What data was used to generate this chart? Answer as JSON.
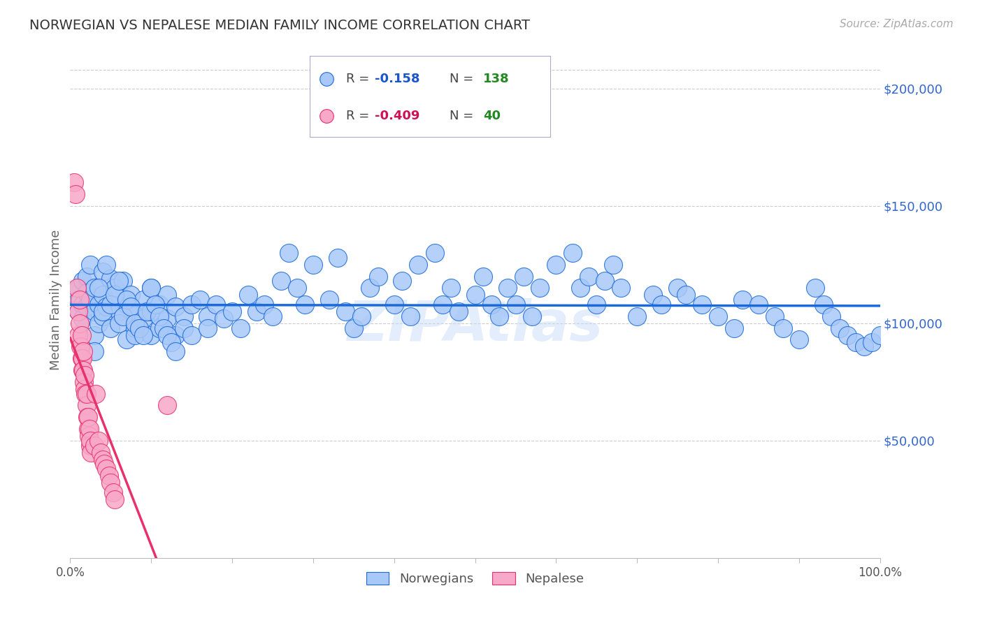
{
  "title": "NORWEGIAN VS NEPALESE MEDIAN FAMILY INCOME CORRELATION CHART",
  "source": "Source: ZipAtlas.com",
  "ylabel": "Median Family Income",
  "watermark": "ZIPAtlas",
  "norwegian_R": "-0.158",
  "norwegian_N": "138",
  "nepalese_R": "-0.409",
  "nepalese_N": "40",
  "norwegian_color": "#a8c8f8",
  "nepalese_color": "#f8a8c8",
  "norwegian_line_color": "#1a6adb",
  "nepalese_line_color": "#e8306a",
  "nepalese_line_dashed_color": "#d0a0b8",
  "grid_color": "#cccccc",
  "title_color": "#333333",
  "ytick_color": "#3366cc",
  "xtick_color": "#555555",
  "legend_border_color": "#aaaacc",
  "legend_r_color_norwegian": "#1a55cc",
  "legend_r_color_nepalese": "#cc1155",
  "legend_n_color": "#228822",
  "background_color": "#ffffff",
  "ylim": [
    0,
    220000
  ],
  "xlim": [
    0.0,
    1.0
  ],
  "yticks": [
    50000,
    100000,
    150000,
    200000
  ],
  "ytick_labels": [
    "$50,000",
    "$100,000",
    "$150,000",
    "$200,000"
  ],
  "xticks": [
    0.0,
    0.1,
    0.2,
    0.3,
    0.4,
    0.5,
    0.6,
    0.7,
    0.8,
    0.9,
    1.0
  ],
  "norwegian_x": [
    0.01,
    0.01,
    0.01,
    0.015,
    0.015,
    0.015,
    0.02,
    0.02,
    0.02,
    0.025,
    0.025,
    0.03,
    0.03,
    0.03,
    0.035,
    0.035,
    0.04,
    0.04,
    0.04,
    0.045,
    0.05,
    0.05,
    0.055,
    0.06,
    0.06,
    0.065,
    0.07,
    0.07,
    0.075,
    0.08,
    0.08,
    0.08,
    0.09,
    0.09,
    0.1,
    0.1,
    0.1,
    0.11,
    0.11,
    0.12,
    0.12,
    0.13,
    0.13,
    0.14,
    0.14,
    0.15,
    0.15,
    0.16,
    0.17,
    0.17,
    0.18,
    0.19,
    0.2,
    0.21,
    0.22,
    0.23,
    0.24,
    0.25,
    0.26,
    0.27,
    0.28,
    0.29,
    0.3,
    0.32,
    0.33,
    0.34,
    0.35,
    0.36,
    0.37,
    0.38,
    0.4,
    0.41,
    0.42,
    0.43,
    0.45,
    0.46,
    0.47,
    0.48,
    0.5,
    0.51,
    0.52,
    0.53,
    0.54,
    0.55,
    0.56,
    0.57,
    0.58,
    0.6,
    0.62,
    0.63,
    0.64,
    0.65,
    0.66,
    0.67,
    0.68,
    0.7,
    0.72,
    0.73,
    0.75,
    0.76,
    0.78,
    0.8,
    0.82,
    0.83,
    0.85,
    0.87,
    0.88,
    0.9,
    0.92,
    0.93,
    0.94,
    0.95,
    0.96,
    0.97,
    0.98,
    0.99,
    1.0,
    0.03,
    0.035,
    0.04,
    0.045,
    0.05,
    0.055,
    0.06,
    0.065,
    0.07,
    0.075,
    0.08,
    0.085,
    0.09,
    0.095,
    0.1,
    0.105,
    0.11,
    0.115,
    0.12,
    0.125,
    0.13,
    0.135,
    0.14,
    0.145,
    0.15,
    0.155,
    0.16,
    0.165
  ],
  "norwegian_y": [
    115000,
    110000,
    105000,
    108000,
    102000,
    118000,
    120000,
    113000,
    107000,
    125000,
    110000,
    105000,
    95000,
    115000,
    108000,
    100000,
    122000,
    112000,
    103000,
    107000,
    119000,
    98000,
    115000,
    105000,
    100000,
    118000,
    108000,
    93000,
    112000,
    98000,
    105000,
    95000,
    110000,
    102000,
    115000,
    105000,
    95000,
    108000,
    98000,
    112000,
    102000,
    107000,
    95000,
    103000,
    98000,
    108000,
    95000,
    110000,
    103000,
    98000,
    108000,
    102000,
    105000,
    98000,
    112000,
    105000,
    108000,
    103000,
    118000,
    130000,
    115000,
    108000,
    125000,
    110000,
    128000,
    105000,
    98000,
    103000,
    115000,
    120000,
    108000,
    118000,
    103000,
    125000,
    130000,
    108000,
    115000,
    105000,
    112000,
    120000,
    108000,
    103000,
    115000,
    108000,
    120000,
    103000,
    115000,
    125000,
    130000,
    115000,
    120000,
    108000,
    118000,
    125000,
    115000,
    103000,
    112000,
    108000,
    115000,
    112000,
    108000,
    103000,
    98000,
    110000,
    108000,
    103000,
    98000,
    93000,
    115000,
    108000,
    103000,
    98000,
    95000,
    92000,
    90000,
    92000,
    95000,
    88000,
    115000,
    105000,
    125000,
    108000,
    112000,
    118000,
    103000,
    110000,
    107000,
    100000,
    98000,
    95000,
    105000,
    115000,
    108000,
    103000,
    98000,
    95000,
    92000,
    88000
  ],
  "nepalese_x": [
    0.005,
    0.007,
    0.008,
    0.01,
    0.01,
    0.012,
    0.012,
    0.013,
    0.014,
    0.014,
    0.015,
    0.015,
    0.016,
    0.016,
    0.017,
    0.018,
    0.018,
    0.019,
    0.02,
    0.02,
    0.021,
    0.022,
    0.022,
    0.023,
    0.024,
    0.025,
    0.025,
    0.026,
    0.03,
    0.032,
    0.035,
    0.038,
    0.04,
    0.042,
    0.045,
    0.048,
    0.05,
    0.053,
    0.055,
    0.12
  ],
  "nepalese_y": [
    160000,
    155000,
    115000,
    105000,
    95000,
    110000,
    100000,
    90000,
    85000,
    95000,
    80000,
    85000,
    88000,
    80000,
    75000,
    72000,
    78000,
    70000,
    65000,
    70000,
    60000,
    55000,
    60000,
    52000,
    55000,
    48000,
    50000,
    45000,
    48000,
    70000,
    50000,
    45000,
    42000,
    40000,
    38000,
    35000,
    32000,
    28000,
    25000,
    65000
  ]
}
